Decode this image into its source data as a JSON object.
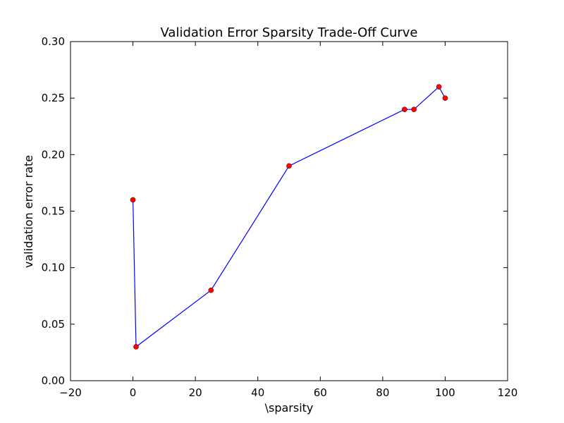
{
  "chart_data": {
    "type": "line",
    "title": "Validation Error Sparsity Trade-Off Curve",
    "xlabel": "\\sparsity",
    "ylabel": "validation error rate",
    "xlim": [
      -20,
      120
    ],
    "ylim": [
      0.0,
      0.3
    ],
    "grid": false,
    "x_ticks": [
      "−20",
      "0",
      "20",
      "40",
      "60",
      "80",
      "100",
      "120"
    ],
    "y_ticks": [
      "0.00",
      "0.05",
      "0.10",
      "0.15",
      "0.20",
      "0.25",
      "0.30"
    ],
    "series": [
      {
        "line_color": "#0000ff",
        "marker_color": "#ff0000",
        "x": [
          0,
          1,
          25,
          50,
          87,
          90,
          98,
          100
        ],
        "y": [
          0.16,
          0.03,
          0.08,
          0.19,
          0.24,
          0.24,
          0.26,
          0.25
        ]
      }
    ]
  }
}
